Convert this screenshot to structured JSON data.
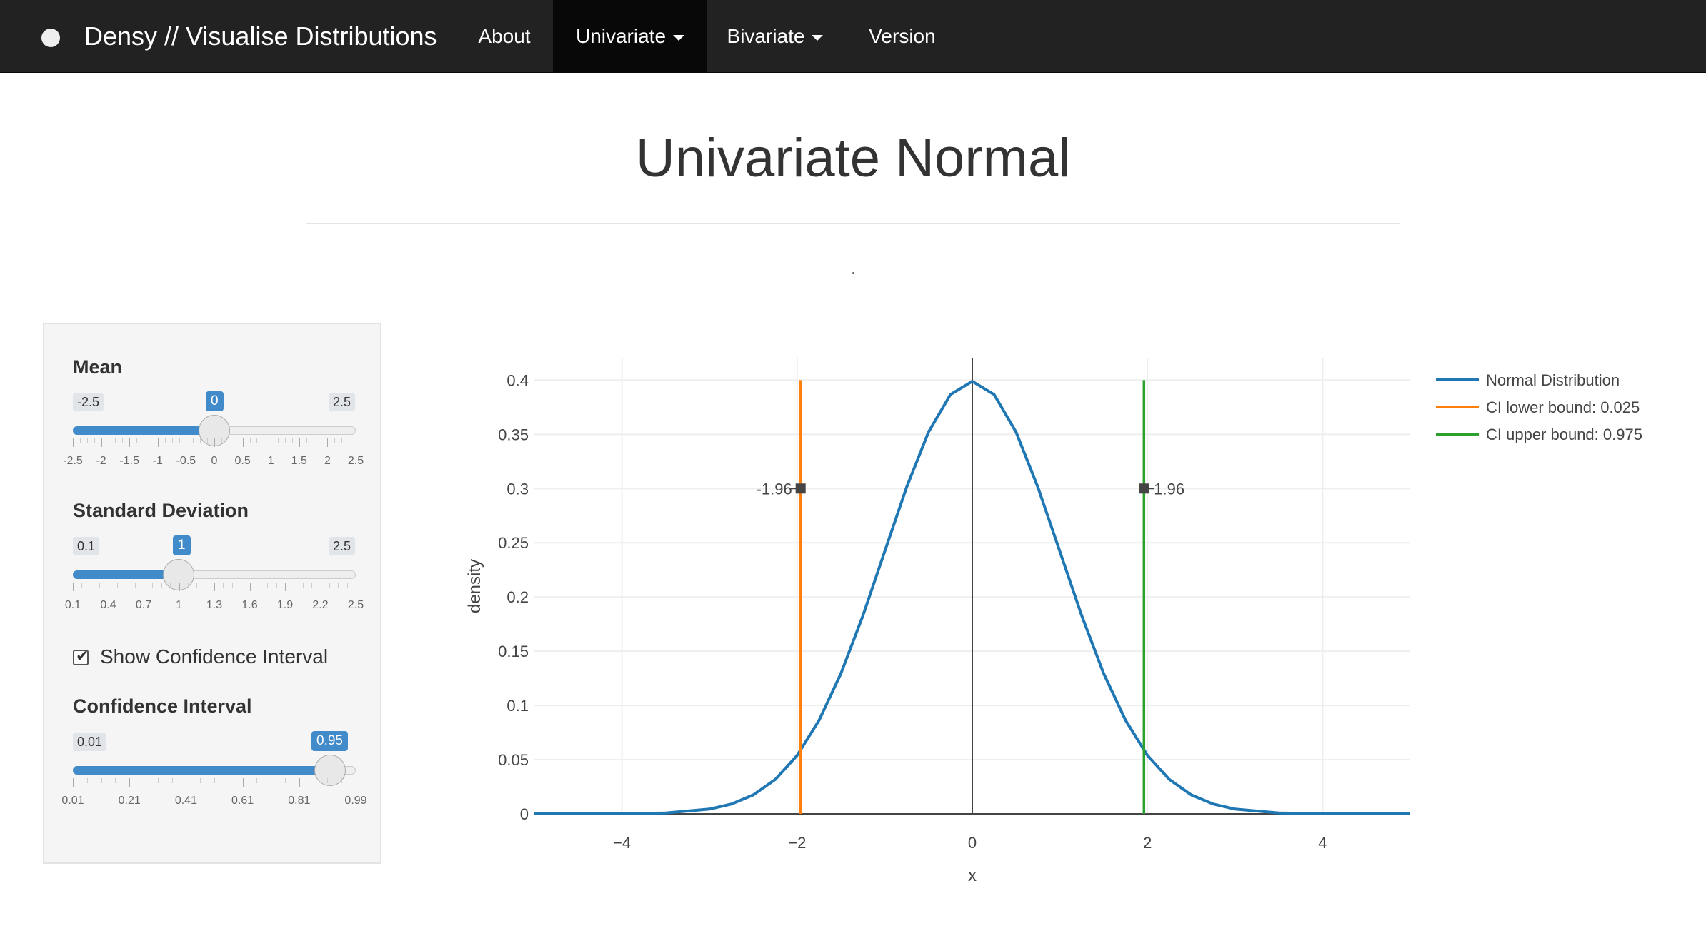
{
  "navbar": {
    "brand": "Densy // Visualise Distributions",
    "items": [
      {
        "label": "About",
        "dropdown": false,
        "active": false
      },
      {
        "label": "Univariate",
        "dropdown": true,
        "active": true
      },
      {
        "label": "Bivariate",
        "dropdown": true,
        "active": false
      },
      {
        "label": "Version",
        "dropdown": false,
        "active": false
      }
    ]
  },
  "page": {
    "title": "Univariate Normal"
  },
  "controls": {
    "mean": {
      "label": "Mean",
      "min": "-2.5",
      "max": "2.5",
      "value": "0",
      "ticks": [
        "-2.5",
        "-2",
        "-1.5",
        "-1",
        "-0.5",
        "0",
        "0.5",
        "1",
        "1.5",
        "2",
        "2.5"
      ]
    },
    "sd": {
      "label": "Standard Deviation",
      "min": "0.1",
      "max": "2.5",
      "value": "1",
      "ticks": [
        "0.1",
        "0.4",
        "0.7",
        "1",
        "1.3",
        "1.6",
        "1.9",
        "2.2",
        "2.5"
      ]
    },
    "show_ci": {
      "label": "Show Confidence Interval",
      "checked": true
    },
    "ci": {
      "label": "Confidence Interval",
      "min": "0.01",
      "max": "0.99",
      "value": "0.95",
      "ticks": [
        "0.01",
        "0.21",
        "0.41",
        "0.61",
        "0.81",
        "0.99"
      ]
    }
  },
  "chart_data": {
    "type": "line",
    "xlabel": "x",
    "ylabel": "density",
    "xlim": [
      -5,
      5
    ],
    "ylim": [
      0,
      0.42
    ],
    "xticks": [
      -4,
      -2,
      0,
      2,
      4
    ],
    "xtick_labels": [
      "−4",
      "−2",
      "0",
      "2",
      "4"
    ],
    "yticks": [
      0,
      0.05,
      0.1,
      0.15,
      0.2,
      0.25,
      0.3,
      0.35,
      0.4
    ],
    "ytick_labels": [
      "0",
      "0.05",
      "0.1",
      "0.15",
      "0.2",
      "0.25",
      "0.3",
      "0.35",
      "0.4"
    ],
    "grid": true,
    "legend_position": "top-right",
    "series": [
      {
        "name": "Normal Distribution",
        "color": "#1f77b4",
        "x": [
          -5,
          -4.5,
          -4,
          -3.5,
          -3,
          -2.75,
          -2.5,
          -2.25,
          -2,
          -1.75,
          -1.5,
          -1.25,
          -1,
          -0.75,
          -0.5,
          -0.25,
          0,
          0.25,
          0.5,
          0.75,
          1,
          1.25,
          1.5,
          1.75,
          2,
          2.25,
          2.5,
          2.75,
          3,
          3.5,
          4,
          4.5,
          5
        ],
        "y": [
          1.5e-06,
          1.6e-05,
          0.000134,
          0.00087,
          0.00443,
          0.00909,
          0.0175,
          0.0317,
          0.054,
          0.0863,
          0.1295,
          0.1826,
          0.242,
          0.3011,
          0.3521,
          0.3867,
          0.3989,
          0.3867,
          0.3521,
          0.3011,
          0.242,
          0.1826,
          0.1295,
          0.0863,
          0.054,
          0.0317,
          0.0175,
          0.00909,
          0.00443,
          0.00087,
          0.000134,
          1.6e-05,
          1.5e-06
        ]
      },
      {
        "name": "CI lower bound:  0.025",
        "color": "#ff7f0e",
        "x": [
          -1.96,
          -1.96
        ],
        "y": [
          0,
          0.4
        ]
      },
      {
        "name": "CI upper bound:  0.975",
        "color": "#2ca02c",
        "x": [
          1.96,
          1.96
        ],
        "y": [
          0,
          0.4
        ]
      }
    ],
    "annotations": [
      {
        "text": "-1.96",
        "x": -1.96,
        "y": 0.3,
        "side": "left"
      },
      {
        "text": "1.96",
        "x": 1.96,
        "y": 0.3,
        "side": "right"
      }
    ]
  }
}
